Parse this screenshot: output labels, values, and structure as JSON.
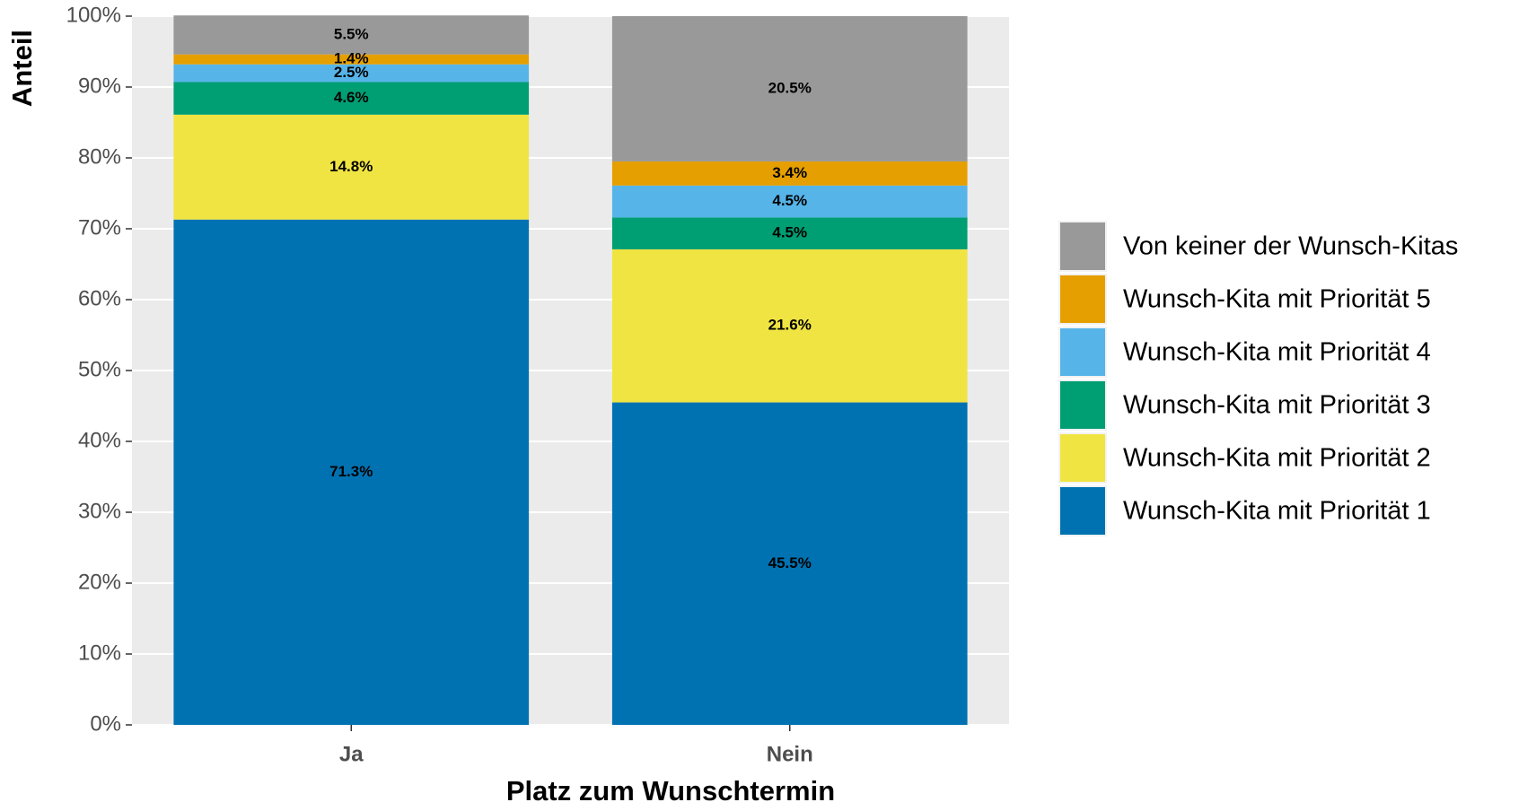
{
  "chart_data": {
    "type": "stacked_bar",
    "x_label": "Platz zum Wunschtermin",
    "y_label": "Anteil",
    "categories": [
      "Ja",
      "Nein"
    ],
    "series": [
      {
        "name": "Wunsch-Kita mit Priorität 1",
        "color": "#0072B2",
        "values": [
          71.3,
          45.5
        ],
        "value_labels": [
          "71.3%",
          "45.5%"
        ]
      },
      {
        "name": "Wunsch-Kita mit Priorität 2",
        "color": "#F0E442",
        "values": [
          14.8,
          21.6
        ],
        "value_labels": [
          "14.8%",
          "21.6%"
        ]
      },
      {
        "name": "Wunsch-Kita mit Priorität 3",
        "color": "#009E73",
        "values": [
          4.6,
          4.5
        ],
        "value_labels": [
          "4.6%",
          "4.5%"
        ]
      },
      {
        "name": "Wunsch-Kita mit Priorität 4",
        "color": "#56B4E9",
        "values": [
          2.5,
          4.5
        ],
        "value_labels": [
          "2.5%",
          "4.5%"
        ]
      },
      {
        "name": "Wunsch-Kita mit Priorität 5",
        "color": "#E69F00",
        "values": [
          1.4,
          3.4
        ],
        "value_labels": [
          "1.4%",
          "3.4%"
        ]
      },
      {
        "name": "Von keiner der Wunsch-Kitas",
        "color": "#999999",
        "values": [
          5.5,
          20.5
        ],
        "value_labels": [
          "5.5%",
          "20.5%"
        ]
      }
    ],
    "ylim": [
      0,
      100
    ],
    "yticks": [
      {
        "value": 0,
        "label": "0%"
      },
      {
        "value": 10,
        "label": "10%"
      },
      {
        "value": 20,
        "label": "20%"
      },
      {
        "value": 30,
        "label": "30%"
      },
      {
        "value": 40,
        "label": "40%"
      },
      {
        "value": 50,
        "label": "50%"
      },
      {
        "value": 60,
        "label": "60%"
      },
      {
        "value": 70,
        "label": "70%"
      },
      {
        "value": 80,
        "label": "80%"
      },
      {
        "value": 90,
        "label": "90%"
      },
      {
        "value": 100,
        "label": "100%"
      }
    ],
    "grid": true,
    "legend": "right"
  }
}
